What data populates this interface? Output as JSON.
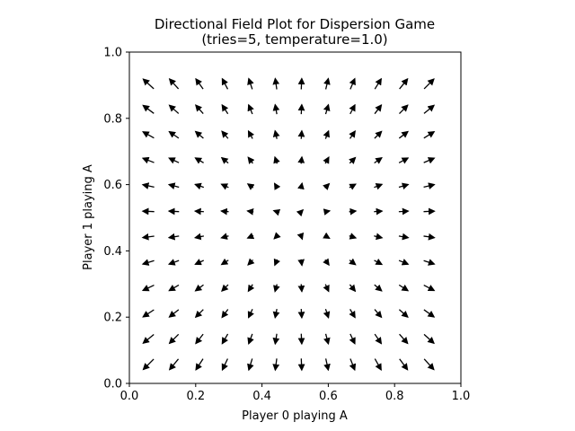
{
  "chart_data": {
    "type": "quiver",
    "title": "Directional Field Plot for Dispersion Game",
    "subtitle": "(tries=5, temperature=1.0)",
    "xlabel": "Player 0 playing A",
    "ylabel": "Player 1 playing A",
    "xlim": [
      0.0,
      1.0
    ],
    "ylim": [
      0.0,
      1.0
    ],
    "xticks": [
      "0.0",
      "0.2",
      "0.4",
      "0.6",
      "0.8",
      "1.0"
    ],
    "yticks": [
      "0.0",
      "0.2",
      "0.4",
      "0.6",
      "0.8",
      "1.0"
    ],
    "grid": false,
    "legend": "none",
    "arrow_color": "#000000",
    "field": {
      "x": [
        0.0577,
        0.1346,
        0.2115,
        0.2885,
        0.3654,
        0.4423,
        0.5192,
        0.5962,
        0.6731,
        0.75,
        0.8269,
        0.9038
      ],
      "y": [
        0.0577,
        0.1346,
        0.2115,
        0.2885,
        0.3654,
        0.4423,
        0.5192,
        0.5962,
        0.6731,
        0.75,
        0.8269,
        0.9038
      ],
      "flow": "away from the center (0.5, 0.5) toward the corners; vector = (x - 0.5, y - 0.5)"
    }
  }
}
